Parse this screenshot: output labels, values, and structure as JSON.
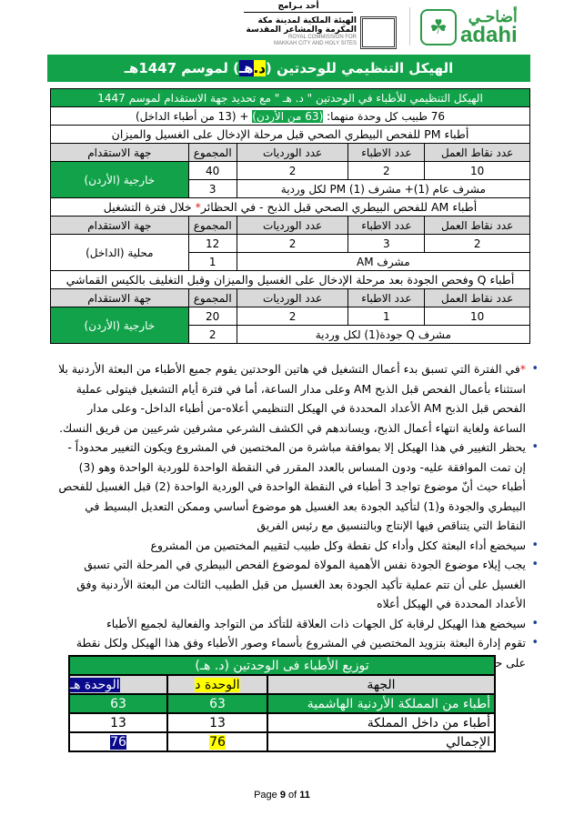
{
  "header": {
    "program": "أحد بـرامج",
    "commission_ar_1": "الهيئة الملكية لمدينة مكة",
    "commission_ar_2": "المكرمة والمشاعر المقدسة",
    "commission_en_1": "ROYAL COMMISSION FOR",
    "commission_en_2": "MAKKAH CITY AND HOLY SITES",
    "adahi_ar": "أضاحـي",
    "adahi_en": "adahi"
  },
  "title": {
    "pre": "الهيكل التنظيمي للوحدتين (",
    "d": "د.",
    "sp": " ",
    "h": "هـ",
    "post": ") لموسم 1447هـ"
  },
  "table": {
    "title": "الهيكل التنظيمي للأطباء في الوحدتين \" د. هـ \" مع تحديد جهة الاستقدام لموسم 1447",
    "summary_pre": "76 طبيب كل وحدة منهما: ",
    "summary_hl": "(63 من الأردن)",
    "summary_post": " + (13 من أطباء الداخل)",
    "columns": [
      "عدد نقاط العمل",
      "عدد الاطباء",
      "عدد الورديات",
      "المجموع",
      "جهة الاستقدام"
    ],
    "sections": [
      {
        "heading": "أطباء PM للفحص البيطري الصحي قبل مرحلة الإدخال على الغسيل والميزان",
        "points": "10",
        "doctors": "2",
        "shifts": "2",
        "total": "40",
        "source": "خارجية (الأردن)",
        "supervisor": "مشرف عام (1)+ مشرف PM (1) لكل وردية",
        "sup_total": "3"
      },
      {
        "heading": "أطباء AM للفحص البيطري الصحي قبل الذبح - في الحظائر",
        "heading_star": "*",
        "heading_post": " خلال فترة التشغيل",
        "points": "2",
        "doctors": "3",
        "shifts": "2",
        "total": "12",
        "source": "محلية (الداخل)",
        "supervisor": "مشرف AM",
        "sup_total": "1"
      },
      {
        "heading": "أطباء Q وفحص الجودة بعد مرحلة الإدخال على الغسيل والميزان وقبل التغليف بالكيس القماشي",
        "points": "10",
        "doctors": "1",
        "shifts": "2",
        "total": "20",
        "source": "خارجية (الأردن)",
        "supervisor": "مشرف Q جودة(1) لكل وردية",
        "sup_total": "2"
      }
    ]
  },
  "notes": [
    {
      "star": "*",
      "text": "في الفترة التي تسبق بدء أعمال التشغيل في هاتين الوحدتين يقوم جميع الأطباء من البعثة الأردنية بلا استثناء بأعمال الفحص قبل الذبح AM وعلى مدار الساعة، أما في فترة أيام التشغيل فيتولى عملية الفحص قبل الذبح AM الأعداد المحددة في الهيكل التنظيمي أعلاه-من أطباء الداخل- وعلى مدار الساعة ولغاية انتهاء أعمال الذبح، ويساندهم في الكشف الشرعي مشرفين شرعيين من فريق النسك."
    },
    {
      "text": "يحظر التغيير في هذا الهيكل إلا بموافقة مباشرة من المختصين في المشروع ويكون التغيير محدوداً - إن تمت الموافقة عليه- ودون المساس بالعدد المقرر في النقطة الواحدة للوردية الواحدة وهو (3) أطباء حيث أنّ موضوع تواجد 3 أطباء في النقطة الواحدة في الوردية الواحدة (2) قبل الغسيل للفحص البيطري والجودة و(1) لتأكيد الجودة بعد الغسيل هو موضوع أساسي وممكن التعديل البسيط في النقاط التي يتناقص فيها الإنتاج وبالتنسيق مع رئيس الفريق"
    },
    {
      "text": "سيخضع أداء البعثة ككل وأداء كل نقطة وكل طبيب لتقييم المختصين من المشروع"
    },
    {
      "text": "يجب إيلاء موضوع الجودة نفس الأهمية المولاة لموضوع الفحص البيطري في المرحلة التي تسبق الغسيل على أن تتم عملية تأكيد الجودة بعد الغسيل من قبل الطبيب الثالث من البعثة الأردنية وفق الأعداد المحددة في الهيكل أعلاه"
    },
    {
      "text": "سيخضع هذا الهيكل لرقابة كل الجهات ذات العلاقة للتأكد من التواجد والفعالية لجميع الأطباء"
    },
    {
      "text": "تقوم إدارة البعثة بتزويد المختصين في المشروع بأسماء وصور الأطباء وفق هذا الهيكل ولكل نقطة على حدة"
    }
  ],
  "distribution": {
    "title": "توزيع الأطباء فى الوحدتين (د. هـ)",
    "columns": [
      "الجهة",
      "الوحدة د",
      "الوحدة هـ"
    ],
    "rows": [
      {
        "label": "أطباء من المملكة الأردنية الهاشمية",
        "d": "63",
        "h": "63"
      },
      {
        "label": "أطباء من داخل المملكة",
        "d": "13",
        "h": "13"
      },
      {
        "label": "الإجمالي",
        "d": "76",
        "h": "76"
      }
    ]
  },
  "footer": {
    "pre": "Page ",
    "page": "9",
    "mid": " of ",
    "total": "11"
  },
  "colors": {
    "green": "#12a34a",
    "yellow": "#ffff00",
    "navy": "#0a0a8c",
    "header_gray": "#d9d9d9"
  }
}
